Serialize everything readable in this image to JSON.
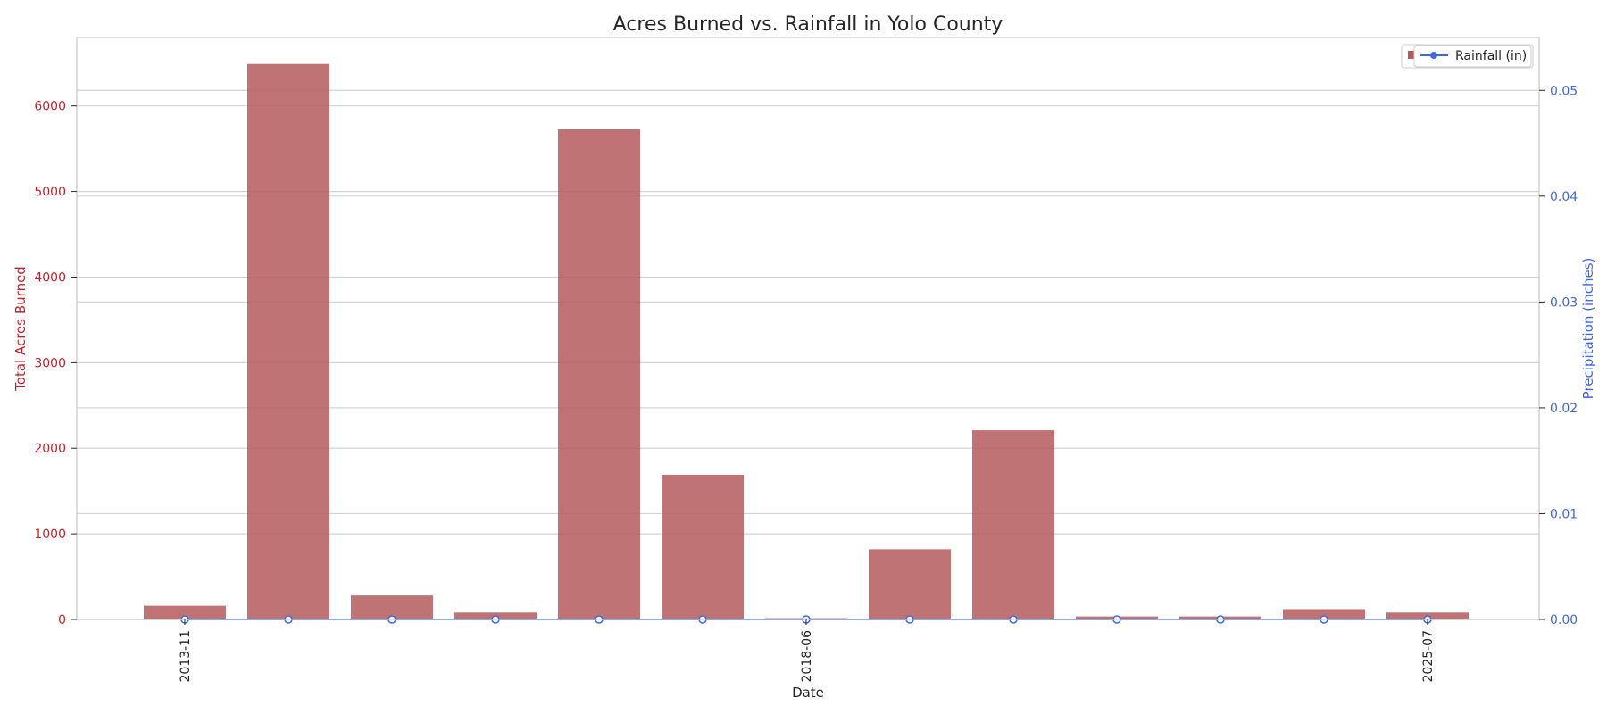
{
  "chart_data": {
    "type": "bar",
    "title": "Acres Burned vs. Rainfall in Yolo County",
    "xlabel": "Date",
    "ylabel_left": "Total Acres Burned",
    "ylabel_right": "Precipitation (inches)",
    "x_tick_labels": [
      "2013-11",
      "",
      "",
      "",
      "",
      "",
      "2018-06",
      "",
      "",
      "",
      "",
      "",
      "2025-07"
    ],
    "left_ylim": [
      0,
      6800
    ],
    "left_ticks": [
      0,
      1000,
      2000,
      3000,
      4000,
      5000,
      6000
    ],
    "right_ylim": [
      0,
      0.055
    ],
    "right_ticks": [
      "0.00",
      "0.01",
      "0.02",
      "0.03",
      "0.04",
      "0.05"
    ],
    "grid": true,
    "legend_position": "top-right",
    "series": [
      {
        "kind": "bar",
        "axis": "left",
        "values": [
          160,
          6490,
          280,
          80,
          5730,
          1690,
          15,
          820,
          2210,
          35,
          35,
          120,
          80
        ]
      },
      {
        "name": "Rainfall (in)",
        "kind": "line",
        "axis": "right",
        "values": [
          0,
          0,
          0,
          0,
          0,
          0,
          0,
          0,
          0,
          0,
          0,
          0,
          0
        ]
      }
    ],
    "colors": {
      "bars": "#b55a5c",
      "rain": "#4169e1",
      "left_axis": "#c0262c",
      "right_axis": "#4169e1"
    }
  }
}
